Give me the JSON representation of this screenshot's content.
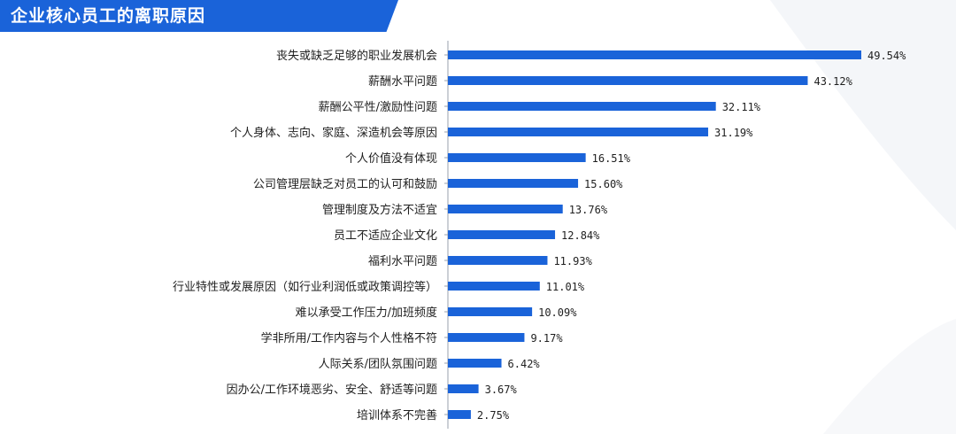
{
  "header": {
    "title": "企业核心员工的离职原因"
  },
  "watermark": "",
  "colors": {
    "title_bg": "#1a63d9",
    "bar": "#1a63d9",
    "axis": "#9aa1ad"
  },
  "chart_data": {
    "type": "bar",
    "orientation": "horizontal",
    "title": "企业核心员工的离职原因",
    "xlabel": "",
    "ylabel": "",
    "xlim": [
      0,
      50
    ],
    "grid": false,
    "categories": [
      "丧失或缺乏足够的职业发展机会",
      "薪酬水平问题",
      "薪酬公平性/激励性问题",
      "个人身体、志向、家庭、深造机会等原因",
      "个人价值没有体现",
      "公司管理层缺乏对员工的认可和鼓励",
      "管理制度及方法不适宜",
      "员工不适应企业文化",
      "福利水平问题",
      "行业特性或发展原因（如行业利润低或政策调控等）",
      "难以承受工作压力/加班频度",
      "学非所用/工作内容与个人性格不符",
      "人际关系/团队氛围问题",
      "因办公/工作环境恶劣、安全、舒适等问题",
      "培训体系不完善"
    ],
    "values": [
      49.54,
      43.12,
      32.11,
      31.19,
      16.51,
      15.6,
      13.76,
      12.84,
      11.93,
      11.01,
      10.09,
      9.17,
      6.42,
      3.67,
      2.75
    ],
    "value_labels": [
      "49.54%",
      "43.12%",
      "32.11%",
      "31.19%",
      "16.51%",
      "15.60%",
      "13.76%",
      "12.84%",
      "11.93%",
      "11.01%",
      "10.09%",
      "9.17%",
      "6.42%",
      "3.67%",
      "2.75%"
    ]
  }
}
